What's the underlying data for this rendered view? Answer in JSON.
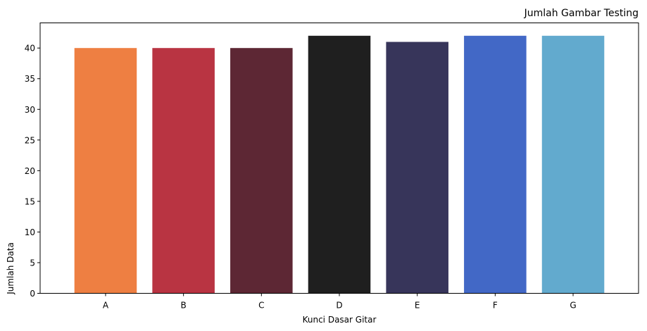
{
  "chart_data": {
    "type": "bar",
    "title": "Jumlah Gambar Testing",
    "title_position": "right",
    "xlabel": "Kunci Dasar Gitar",
    "ylabel": "Jumlah Data",
    "categories": [
      "A",
      "B",
      "C",
      "D",
      "E",
      "F",
      "G"
    ],
    "values": [
      40,
      40,
      40,
      42,
      41,
      42,
      42
    ],
    "colors": [
      "#ee7f42",
      "#b93442",
      "#5d2734",
      "#1f1f1f",
      "#37355a",
      "#4268c6",
      "#62aace"
    ],
    "ylim": [
      0,
      44.1
    ],
    "yticks": [
      0,
      5,
      10,
      15,
      20,
      25,
      30,
      35,
      40
    ],
    "grid": false,
    "legend": false
  }
}
